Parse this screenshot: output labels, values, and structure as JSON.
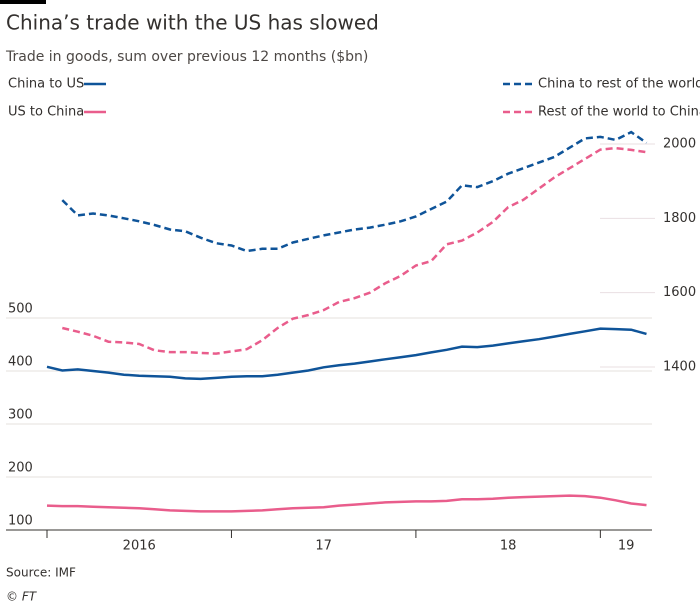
{
  "chart_data": {
    "type": "line",
    "title": "China’s trade with the US has slowed",
    "subtitle": "Trade in goods, sum over previous 12 months ($bn)",
    "source": "Source: IMF",
    "credit": "© FT",
    "x": [
      2016,
      2016.083,
      2016.167,
      2016.25,
      2016.333,
      2016.417,
      2016.5,
      2016.583,
      2016.667,
      2016.75,
      2016.833,
      2016.917,
      2017,
      2017.083,
      2017.167,
      2017.25,
      2017.333,
      2017.417,
      2017.5,
      2017.583,
      2017.667,
      2017.75,
      2017.833,
      2017.917,
      2018,
      2018.083,
      2018.167,
      2018.25,
      2018.333,
      2018.417,
      2018.5,
      2018.583,
      2018.667,
      2018.75,
      2018.833,
      2018.917,
      2019,
      2019.083,
      2019.167,
      2019.25
    ],
    "xlim": [
      2016,
      2019.28
    ],
    "xticks": [
      {
        "value": 2016,
        "label": "2016"
      },
      {
        "value": 2017,
        "label": "17"
      },
      {
        "value": 2018,
        "label": "18"
      },
      {
        "value": 2019,
        "label": "19"
      }
    ],
    "ylim": [
      100,
      500
    ],
    "yticks": [
      100,
      200,
      300,
      400,
      500
    ],
    "y2lim": [
      1400,
      2000
    ],
    "y2ticks": [
      1400,
      1600,
      1800,
      2000
    ],
    "grid": true,
    "series": [
      {
        "name": "China to US",
        "color": "#0f5499",
        "line_style": "solid",
        "values": [
          408,
          401,
          403,
          400,
          397,
          393,
          391,
          390,
          389,
          386,
          385,
          387,
          389,
          390,
          390,
          393,
          397,
          401,
          407,
          411,
          414,
          418,
          422,
          426,
          430,
          435,
          440,
          446,
          445,
          448,
          452,
          456,
          460,
          465,
          470,
          475,
          480,
          479,
          478,
          470
        ]
      },
      {
        "name": "US to China",
        "color": "#e95d8c",
        "line_style": "solid",
        "values": [
          146,
          145,
          145,
          144,
          143,
          142,
          141,
          139,
          137,
          136,
          135,
          135,
          135,
          136,
          137,
          139,
          141,
          142,
          143,
          146,
          148,
          150,
          152,
          153,
          154,
          154,
          155,
          158,
          158,
          159,
          161,
          162,
          163,
          164,
          165,
          164,
          161,
          156,
          150,
          147
        ]
      },
      {
        "name": "China to rest of the world",
        "color": "#0f5499",
        "line_style": "dashed",
        "axis": "y2",
        "values": [
          null,
          1849,
          1808,
          1813,
          1808,
          1800,
          1792,
          1782,
          1770,
          1765,
          1748,
          1733,
          1727,
          1712,
          1718,
          1718,
          1735,
          1745,
          1754,
          1762,
          1770,
          1775,
          1783,
          1792,
          1805,
          1825,
          1845,
          1889,
          1884,
          1900,
          1920,
          1935,
          1950,
          1965,
          1990,
          2015,
          2019,
          2011,
          2032,
          2003
        ]
      },
      {
        "name": "Rest of the world to China",
        "color": "#e95d8c",
        "line_style": "dashed",
        "axis": "y2",
        "values": [
          null,
          1505,
          1495,
          1484,
          1468,
          1466,
          1462,
          1445,
          1440,
          1440,
          1438,
          1436,
          1442,
          1448,
          1472,
          1505,
          1530,
          1540,
          1553,
          1575,
          1585,
          1600,
          1625,
          1645,
          1673,
          1685,
          1730,
          1740,
          1762,
          1790,
          1830,
          1850,
          1880,
          1910,
          1935,
          1960,
          1985,
          1989,
          1984,
          1978
        ]
      }
    ]
  }
}
